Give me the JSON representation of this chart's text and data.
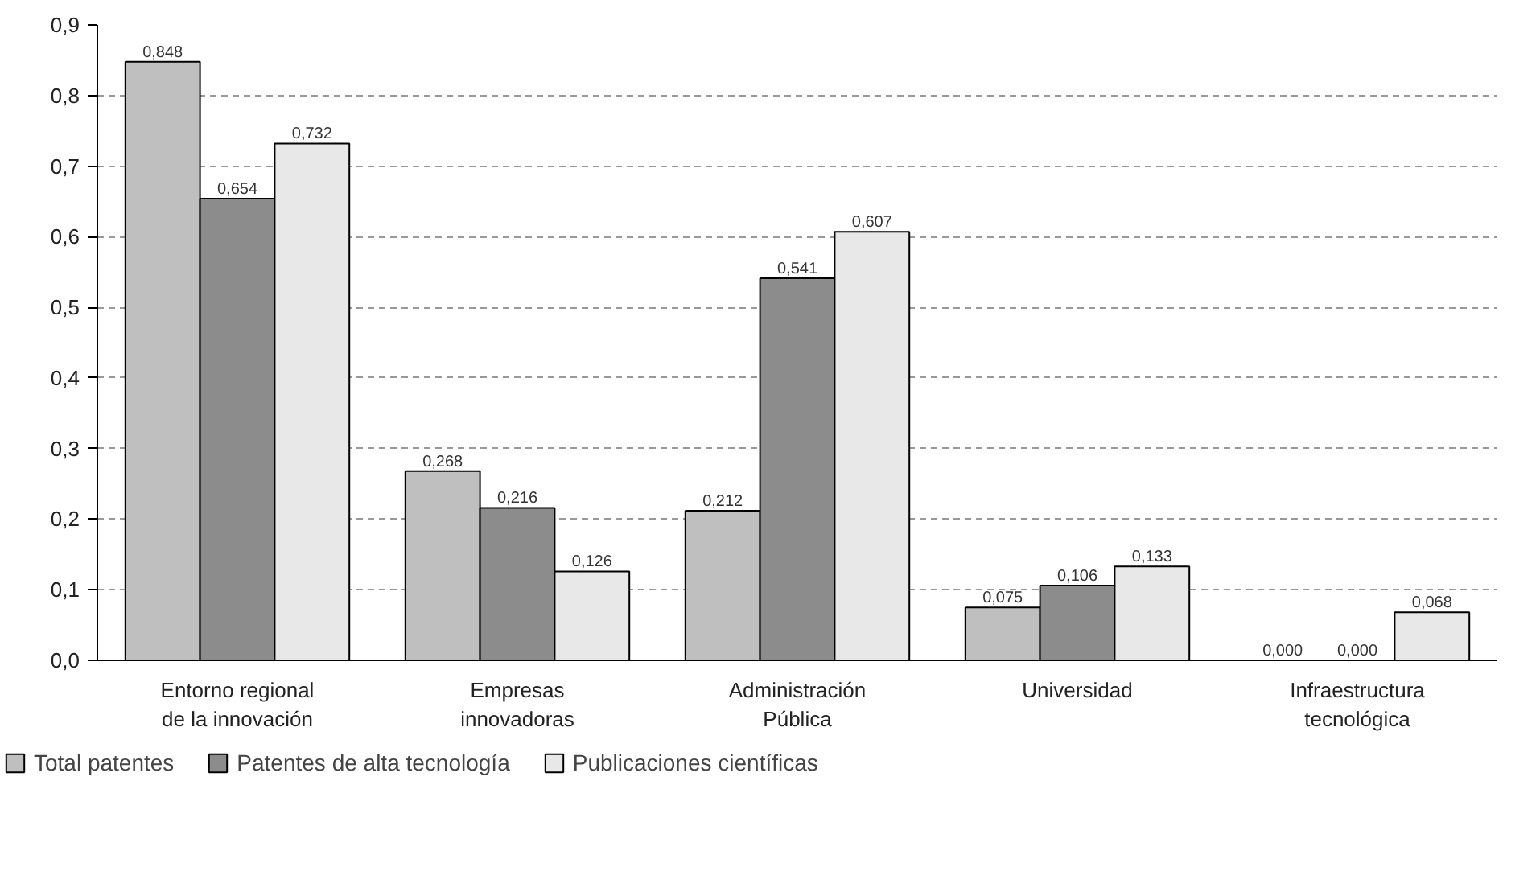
{
  "chart_data": {
    "type": "bar",
    "categories": [
      "Entorno regional\nde la innovación",
      "Empresas\ninnovadoras",
      "Administración\nPública",
      "Universidad",
      "Infraestructura\ntecnológica"
    ],
    "series": [
      {
        "name": "Total patentes",
        "color": "#bfbfbf",
        "values": [
          0.848,
          0.268,
          0.212,
          0.075,
          0.0
        ],
        "value_labels": [
          "0,848",
          "0,268",
          "0,212",
          "0,075",
          "0,000"
        ]
      },
      {
        "name": "Patentes de alta tecnología",
        "color": "#8c8c8c",
        "values": [
          0.654,
          0.216,
          0.541,
          0.106,
          0.0
        ],
        "value_labels": [
          "0,654",
          "0,216",
          "0,541",
          "0,106",
          "0,000"
        ]
      },
      {
        "name": "Publicaciones científicas",
        "color": "#e8e8e8",
        "values": [
          0.732,
          0.126,
          0.607,
          0.133,
          0.068
        ],
        "value_labels": [
          "0,732",
          "0,126",
          "0,607",
          "0,133",
          "0,068"
        ]
      }
    ],
    "ylim": [
      0,
      0.9
    ],
    "yticks": [
      {
        "value": 0,
        "label": "0,0"
      },
      {
        "value": 0.1,
        "label": "0,1"
      },
      {
        "value": 0.2,
        "label": "0,2"
      },
      {
        "value": 0.3,
        "label": "0,3"
      },
      {
        "value": 0.4,
        "label": "0,4"
      },
      {
        "value": 0.5,
        "label": "0,5"
      },
      {
        "value": 0.6,
        "label": "0,6"
      },
      {
        "value": 0.7,
        "label": "0,7"
      },
      {
        "value": 0.8,
        "label": "0,8"
      },
      {
        "value": 0.9,
        "label": "0,9"
      }
    ],
    "grid": "y",
    "legend": "bottom left"
  }
}
